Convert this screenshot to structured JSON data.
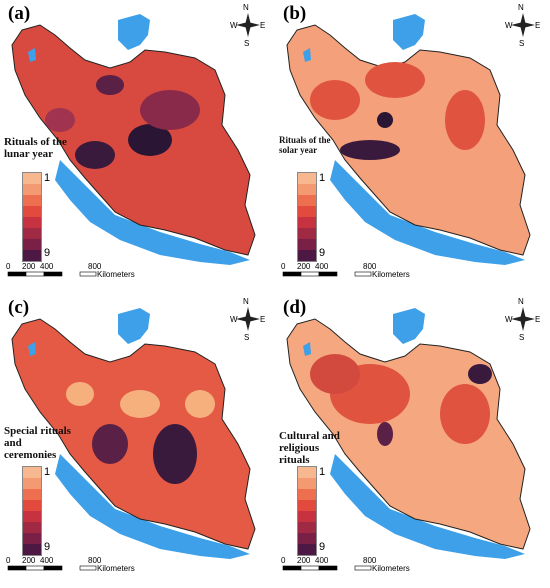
{
  "panels": [
    {
      "label": "(a)",
      "legend_title": "Rituals of the lunar year",
      "fill": "#d84a3f",
      "blobs": [
        [
          95,
          155,
          20,
          14,
          "#3a1a3c"
        ],
        [
          150,
          140,
          22,
          16,
          "#2b1534"
        ],
        [
          110,
          85,
          14,
          10,
          "#5a2045"
        ],
        [
          170,
          110,
          30,
          20,
          "#8a2a4a"
        ],
        [
          60,
          120,
          15,
          12,
          "#a0334f"
        ]
      ]
    },
    {
      "label": "(b)",
      "legend_title": "Rituals of the solar year",
      "fill": "#f4a07a",
      "blobs": [
        [
          95,
          150,
          30,
          10,
          "#3a1a3c"
        ],
        [
          110,
          120,
          8,
          8,
          "#2b1534"
        ],
        [
          120,
          80,
          30,
          18,
          "#e0533f"
        ],
        [
          60,
          100,
          25,
          20,
          "#e0533f"
        ],
        [
          190,
          120,
          20,
          30,
          "#e0533f"
        ]
      ]
    },
    {
      "label": "(c)",
      "legend_title": "Special rituals and ceremonies",
      "fill": "#e45a44",
      "blobs": [
        [
          175,
          160,
          22,
          30,
          "#3a1a3c"
        ],
        [
          110,
          150,
          18,
          20,
          "#5a2045"
        ],
        [
          80,
          100,
          14,
          12,
          "#f5b07e"
        ],
        [
          140,
          110,
          20,
          14,
          "#f5b07e"
        ],
        [
          200,
          110,
          15,
          14,
          "#f5b07e"
        ]
      ]
    },
    {
      "label": "(d)",
      "legend_title": "Cultural and religious rituals",
      "fill": "#f5a880",
      "blobs": [
        [
          95,
          100,
          40,
          30,
          "#e0533f"
        ],
        [
          60,
          80,
          25,
          20,
          "#d24a3e"
        ],
        [
          205,
          80,
          12,
          10,
          "#3a1a3c"
        ],
        [
          110,
          140,
          8,
          12,
          "#5a2045"
        ],
        [
          190,
          120,
          25,
          30,
          "#e0533f"
        ]
      ]
    }
  ],
  "legend_max": "1",
  "legend_min": "9",
  "legend_colors": [
    "#f7b890",
    "#f49a72",
    "#ee6e50",
    "#e14a3d",
    "#c6323f",
    "#a02a44",
    "#7a2047",
    "#4d1843"
  ],
  "scale": {
    "ticks": [
      "0",
      "200",
      "400",
      "800"
    ],
    "unit": "Kilometers"
  },
  "compass": {
    "n": "N",
    "s": "S",
    "w": "W",
    "e": "E"
  }
}
